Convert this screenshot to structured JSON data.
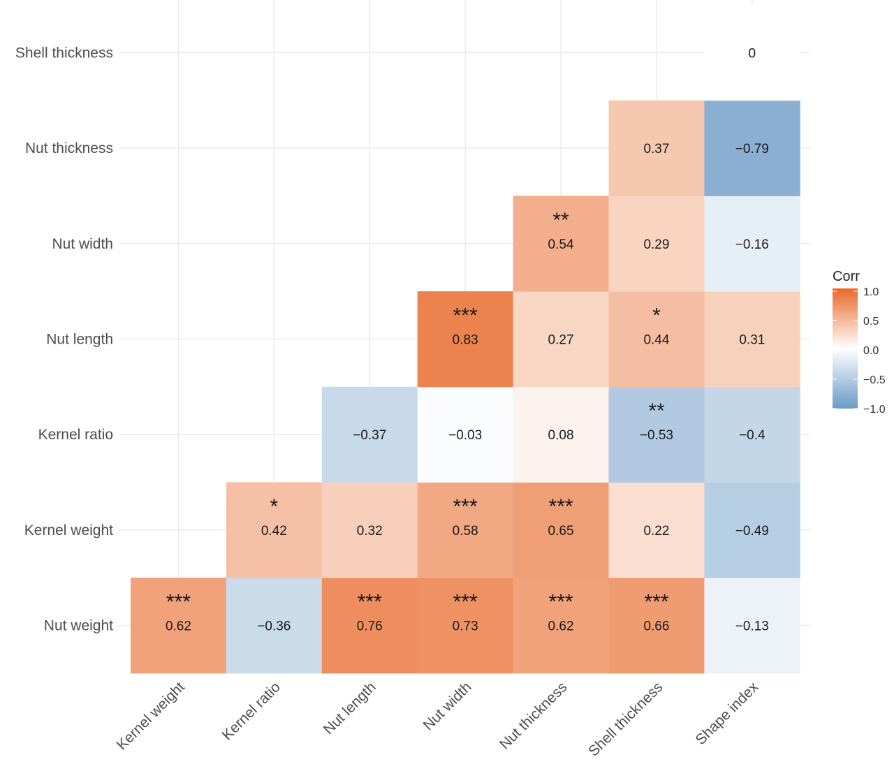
{
  "chart_data": {
    "type": "heatmap",
    "title": "",
    "x_categories": [
      "Kernel weight",
      "Kernel ratio",
      "Nut length",
      "Nut width",
      "Nut thickness",
      "Shell thickness",
      "Shape index"
    ],
    "y_categories": [
      "Shell thickness",
      "Nut thickness",
      "Nut width",
      "Nut length",
      "Kernel ratio",
      "Kernel weight",
      "Nut weight"
    ],
    "cells": [
      {
        "x": "Kernel weight",
        "y": "Nut weight",
        "value": 0.62,
        "sig": "***"
      },
      {
        "x": "Kernel ratio",
        "y": "Nut weight",
        "value": -0.36,
        "sig": ""
      },
      {
        "x": "Nut length",
        "y": "Nut weight",
        "value": 0.76,
        "sig": "***"
      },
      {
        "x": "Nut width",
        "y": "Nut weight",
        "value": 0.73,
        "sig": "***"
      },
      {
        "x": "Nut thickness",
        "y": "Nut weight",
        "value": 0.62,
        "sig": "***"
      },
      {
        "x": "Shell thickness",
        "y": "Nut weight",
        "value": 0.66,
        "sig": "***"
      },
      {
        "x": "Shape index",
        "y": "Nut weight",
        "value": -0.13,
        "sig": ""
      },
      {
        "x": "Kernel ratio",
        "y": "Kernel weight",
        "value": 0.42,
        "sig": "*"
      },
      {
        "x": "Nut length",
        "y": "Kernel weight",
        "value": 0.32,
        "sig": ""
      },
      {
        "x": "Nut width",
        "y": "Kernel weight",
        "value": 0.58,
        "sig": "***"
      },
      {
        "x": "Nut thickness",
        "y": "Kernel weight",
        "value": 0.65,
        "sig": "***"
      },
      {
        "x": "Shell thickness",
        "y": "Kernel weight",
        "value": 0.22,
        "sig": ""
      },
      {
        "x": "Shape index",
        "y": "Kernel weight",
        "value": -0.49,
        "sig": ""
      },
      {
        "x": "Nut length",
        "y": "Kernel ratio",
        "value": -0.37,
        "sig": ""
      },
      {
        "x": "Nut width",
        "y": "Kernel ratio",
        "value": -0.03,
        "sig": ""
      },
      {
        "x": "Nut thickness",
        "y": "Kernel ratio",
        "value": 0.08,
        "sig": ""
      },
      {
        "x": "Shell thickness",
        "y": "Kernel ratio",
        "value": -0.53,
        "sig": "**"
      },
      {
        "x": "Shape index",
        "y": "Kernel ratio",
        "value": -0.4,
        "sig": ""
      },
      {
        "x": "Nut width",
        "y": "Nut length",
        "value": 0.83,
        "sig": "***"
      },
      {
        "x": "Nut thickness",
        "y": "Nut length",
        "value": 0.27,
        "sig": ""
      },
      {
        "x": "Shell thickness",
        "y": "Nut length",
        "value": 0.44,
        "sig": "*"
      },
      {
        "x": "Shape index",
        "y": "Nut length",
        "value": 0.31,
        "sig": ""
      },
      {
        "x": "Nut thickness",
        "y": "Nut width",
        "value": 0.54,
        "sig": "**"
      },
      {
        "x": "Shell thickness",
        "y": "Nut width",
        "value": 0.29,
        "sig": ""
      },
      {
        "x": "Shape index",
        "y": "Nut width",
        "value": -0.16,
        "sig": ""
      },
      {
        "x": "Shell thickness",
        "y": "Nut thickness",
        "value": 0.37,
        "sig": ""
      },
      {
        "x": "Shape index",
        "y": "Nut thickness",
        "value": -0.79,
        "sig": ""
      },
      {
        "x": "Shape index",
        "y": "Shell thickness",
        "value": 0,
        "sig": ""
      }
    ],
    "legend": {
      "title": "Corr",
      "ticks": [
        "1.0",
        "0.5",
        "0.0",
        "−0.5",
        "−1.0"
      ],
      "range": [
        -1,
        1
      ],
      "placement": "right"
    },
    "colors": {
      "high": "#E8692A",
      "mid": "#FFFFFF",
      "low": "#6B9AC6"
    },
    "grid": true
  }
}
